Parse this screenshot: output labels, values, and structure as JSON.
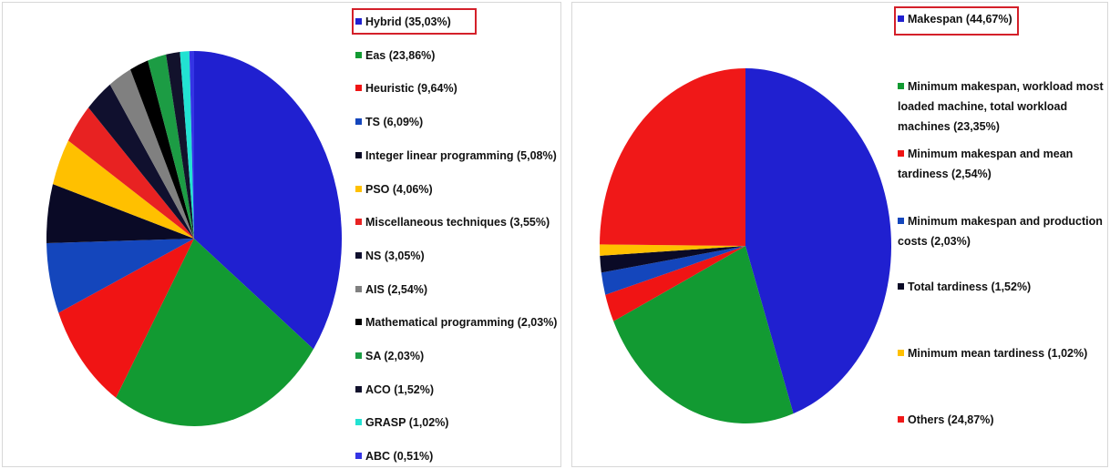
{
  "chart_data": [
    {
      "type": "pie",
      "categories": [
        "Hybrid (35,03%)",
        "Eas (23,86%)",
        "Heuristic (9,64%)",
        "TS (6,09%)",
        "Integer linear programming (5,08%)",
        "PSO (4,06%)",
        "Miscellaneous techniques (3,55%)",
        "NS (3,05%)",
        "AIS (2,54%)",
        "Mathematical programming (2,03%)",
        "SA (2,03%)",
        "ACO (1,52%)",
        "GRASP (1,02%)",
        "ABC (0,51%)"
      ],
      "values": [
        35.03,
        23.86,
        9.64,
        6.09,
        5.08,
        4.06,
        3.55,
        3.05,
        2.54,
        2.03,
        2.03,
        1.52,
        1.02,
        0.51
      ],
      "colors": [
        "#2020d0",
        "#129a32",
        "#f01414",
        "#1446bc",
        "#0a0a26",
        "#ffc000",
        "#e82222",
        "#10102e",
        "#808080",
        "#000000",
        "#1c9c44",
        "#12122c",
        "#22e2d2",
        "#3434e4"
      ]
    },
    {
      "type": "pie",
      "categories": [
        "Makespan (44,67%)",
        "Minimum makespan, workload most loaded machine, total workload machines  (23,35%)",
        "Minimum makespan and mean tardiness  (2,54%)",
        "Minimum makespan and production costs  (2,03%)",
        "Total tardiness  (1,52%)",
        "Minimum mean tardiness (1,02%)",
        "Others (24,87%)"
      ],
      "values": [
        44.67,
        23.35,
        2.54,
        2.03,
        1.52,
        1.02,
        24.87
      ],
      "colors": [
        "#2020d0",
        "#129a32",
        "#f01414",
        "#1446bc",
        "#0a0a26",
        "#ffc000",
        "#f01818"
      ]
    }
  ]
}
